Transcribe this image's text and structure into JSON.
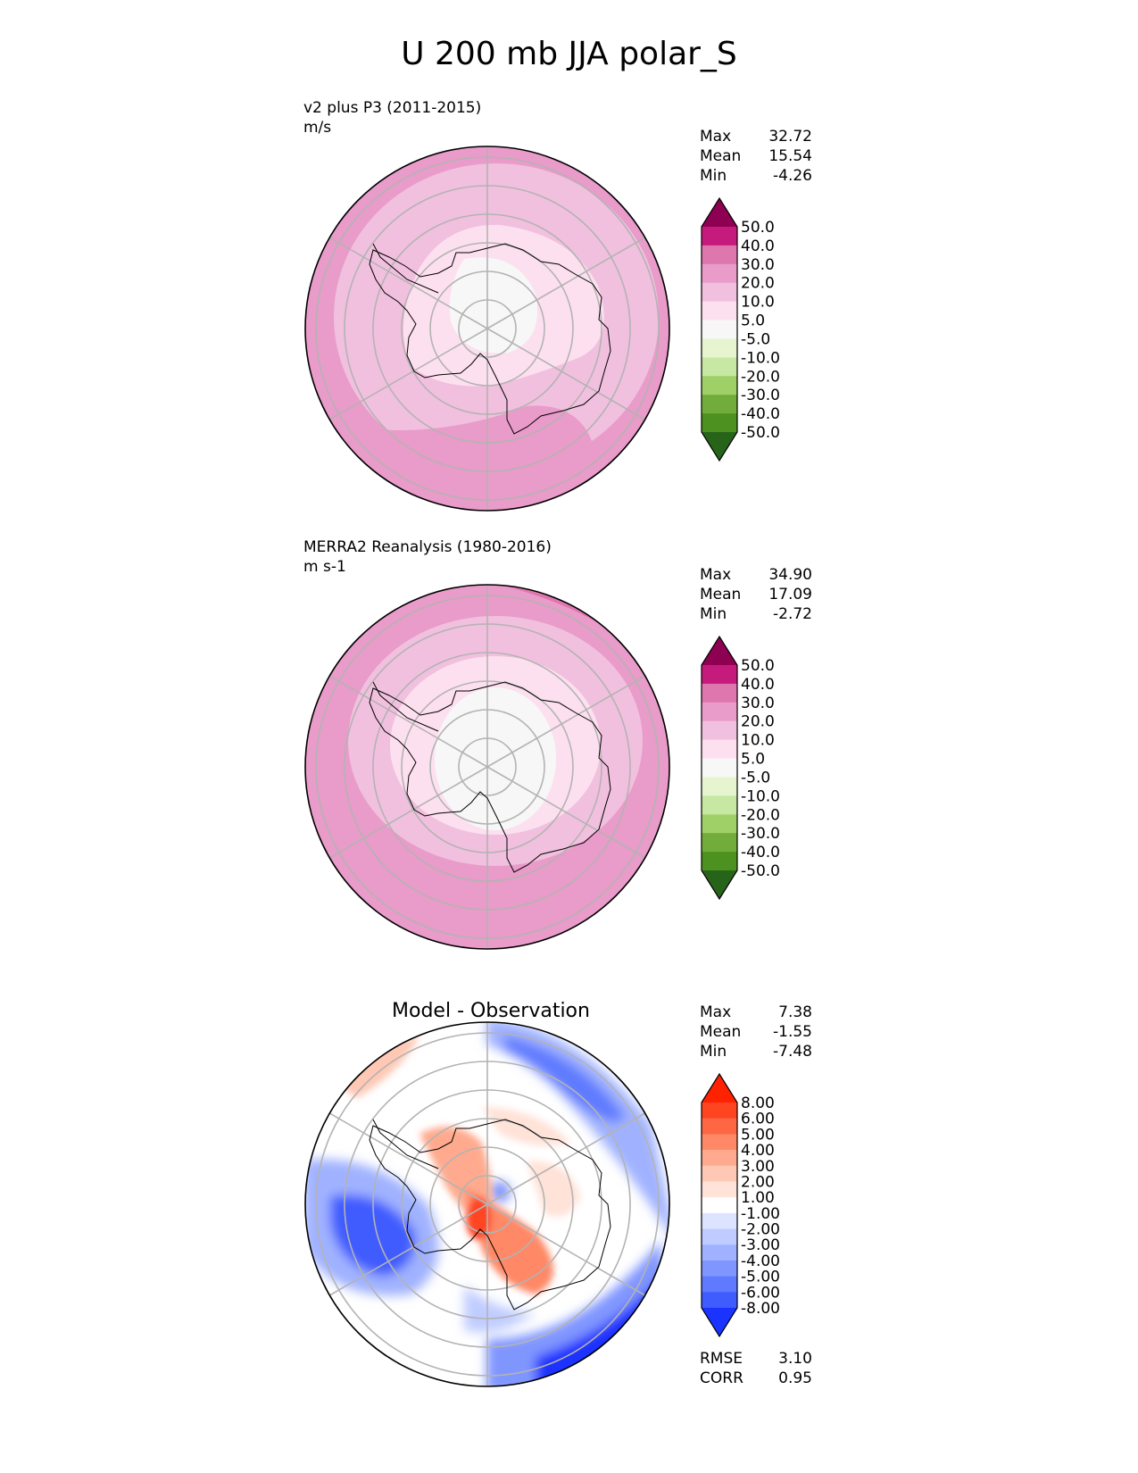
{
  "figure": {
    "title": "U 200 mb JJA polar_S"
  },
  "panels": [
    {
      "id": "test",
      "subtitle_line1": "v2 plus P3 (2011-2015)",
      "subtitle_line2": "m/s",
      "stats": {
        "max_label": "Max",
        "max": "32.72",
        "mean_label": "Mean",
        "mean": "15.54",
        "min_label": "Min",
        "min": "-4.26"
      },
      "colorbar_labels": [
        "50.0",
        "40.0",
        "30.0",
        "20.0",
        "10.0",
        "5.0",
        "-5.0",
        "-10.0",
        "-20.0",
        "-30.0",
        "-40.0",
        "-50.0"
      ],
      "colorbar_colors": [
        "#8e0152",
        "#c51b7d",
        "#de77ae",
        "#e99bc9",
        "#f1c0de",
        "#fde0ef",
        "#f7f7f7",
        "#e6f5d0",
        "#c7e8a2",
        "#9fd068",
        "#72ad3c",
        "#4d9221",
        "#276419"
      ]
    },
    {
      "id": "ref",
      "subtitle_line1": "MERRA2 Reanalysis (1980-2016)",
      "subtitle_line2": "m s-1",
      "stats": {
        "max_label": "Max",
        "max": "34.90",
        "mean_label": "Mean",
        "mean": "17.09",
        "min_label": "Min",
        "min": "-2.72"
      },
      "colorbar_labels": [
        "50.0",
        "40.0",
        "30.0",
        "20.0",
        "10.0",
        "5.0",
        "-5.0",
        "-10.0",
        "-20.0",
        "-30.0",
        "-40.0",
        "-50.0"
      ],
      "colorbar_colors": [
        "#8e0152",
        "#c51b7d",
        "#de77ae",
        "#e99bc9",
        "#f1c0de",
        "#fde0ef",
        "#f7f7f7",
        "#e6f5d0",
        "#c7e8a2",
        "#9fd068",
        "#72ad3c",
        "#4d9221",
        "#276419"
      ]
    },
    {
      "id": "diff",
      "title": "Model - Observation",
      "stats": {
        "max_label": "Max",
        "max": "7.38",
        "mean_label": "Mean",
        "mean": "-1.55",
        "min_label": "Min",
        "min": "-7.48"
      },
      "colorbar_labels": [
        "8.00",
        "6.00",
        "5.00",
        "4.00",
        "3.00",
        "2.00",
        "1.00",
        "-1.00",
        "-2.00",
        "-3.00",
        "-4.00",
        "-5.00",
        "-6.00",
        "-8.00"
      ],
      "colorbar_colors": [
        "#ff2200",
        "#ff4422",
        "#ff6644",
        "#ff8866",
        "#ffaa8e",
        "#ffc8b4",
        "#ffe2d8",
        "#ffffff",
        "#dde4ff",
        "#c0ccff",
        "#a0b2ff",
        "#8096ff",
        "#5f7aff",
        "#3f5cff",
        "#1a33ff"
      ],
      "metrics": {
        "rmse_label": "RMSE",
        "rmse": "3.10",
        "corr_label": "CORR",
        "corr": "0.95"
      }
    }
  ],
  "chart_data": [
    {
      "type": "heatmap",
      "projection": "south polar stereographic",
      "title": "v2 plus P3 (2011-2015)",
      "units": "m/s",
      "variable": "U 200 mb",
      "season": "JJA",
      "levels": [
        -50,
        -40,
        -30,
        -20,
        -10,
        -5,
        5,
        10,
        20,
        30,
        40,
        50
      ],
      "max": 32.72,
      "mean": 15.54,
      "min": -4.26
    },
    {
      "type": "heatmap",
      "projection": "south polar stereographic",
      "title": "MERRA2 Reanalysis (1980-2016)",
      "units": "m s-1",
      "variable": "U 200 mb",
      "season": "JJA",
      "levels": [
        -50,
        -40,
        -30,
        -20,
        -10,
        -5,
        5,
        10,
        20,
        30,
        40,
        50
      ],
      "max": 34.9,
      "mean": 17.09,
      "min": -2.72
    },
    {
      "type": "heatmap",
      "projection": "south polar stereographic",
      "title": "Model - Observation",
      "levels": [
        -8,
        -6,
        -5,
        -4,
        -3,
        -2,
        -1,
        1,
        2,
        3,
        4,
        5,
        6,
        8
      ],
      "max": 7.38,
      "mean": -1.55,
      "min": -7.48,
      "rmse": 3.1,
      "corr": 0.95
    }
  ]
}
